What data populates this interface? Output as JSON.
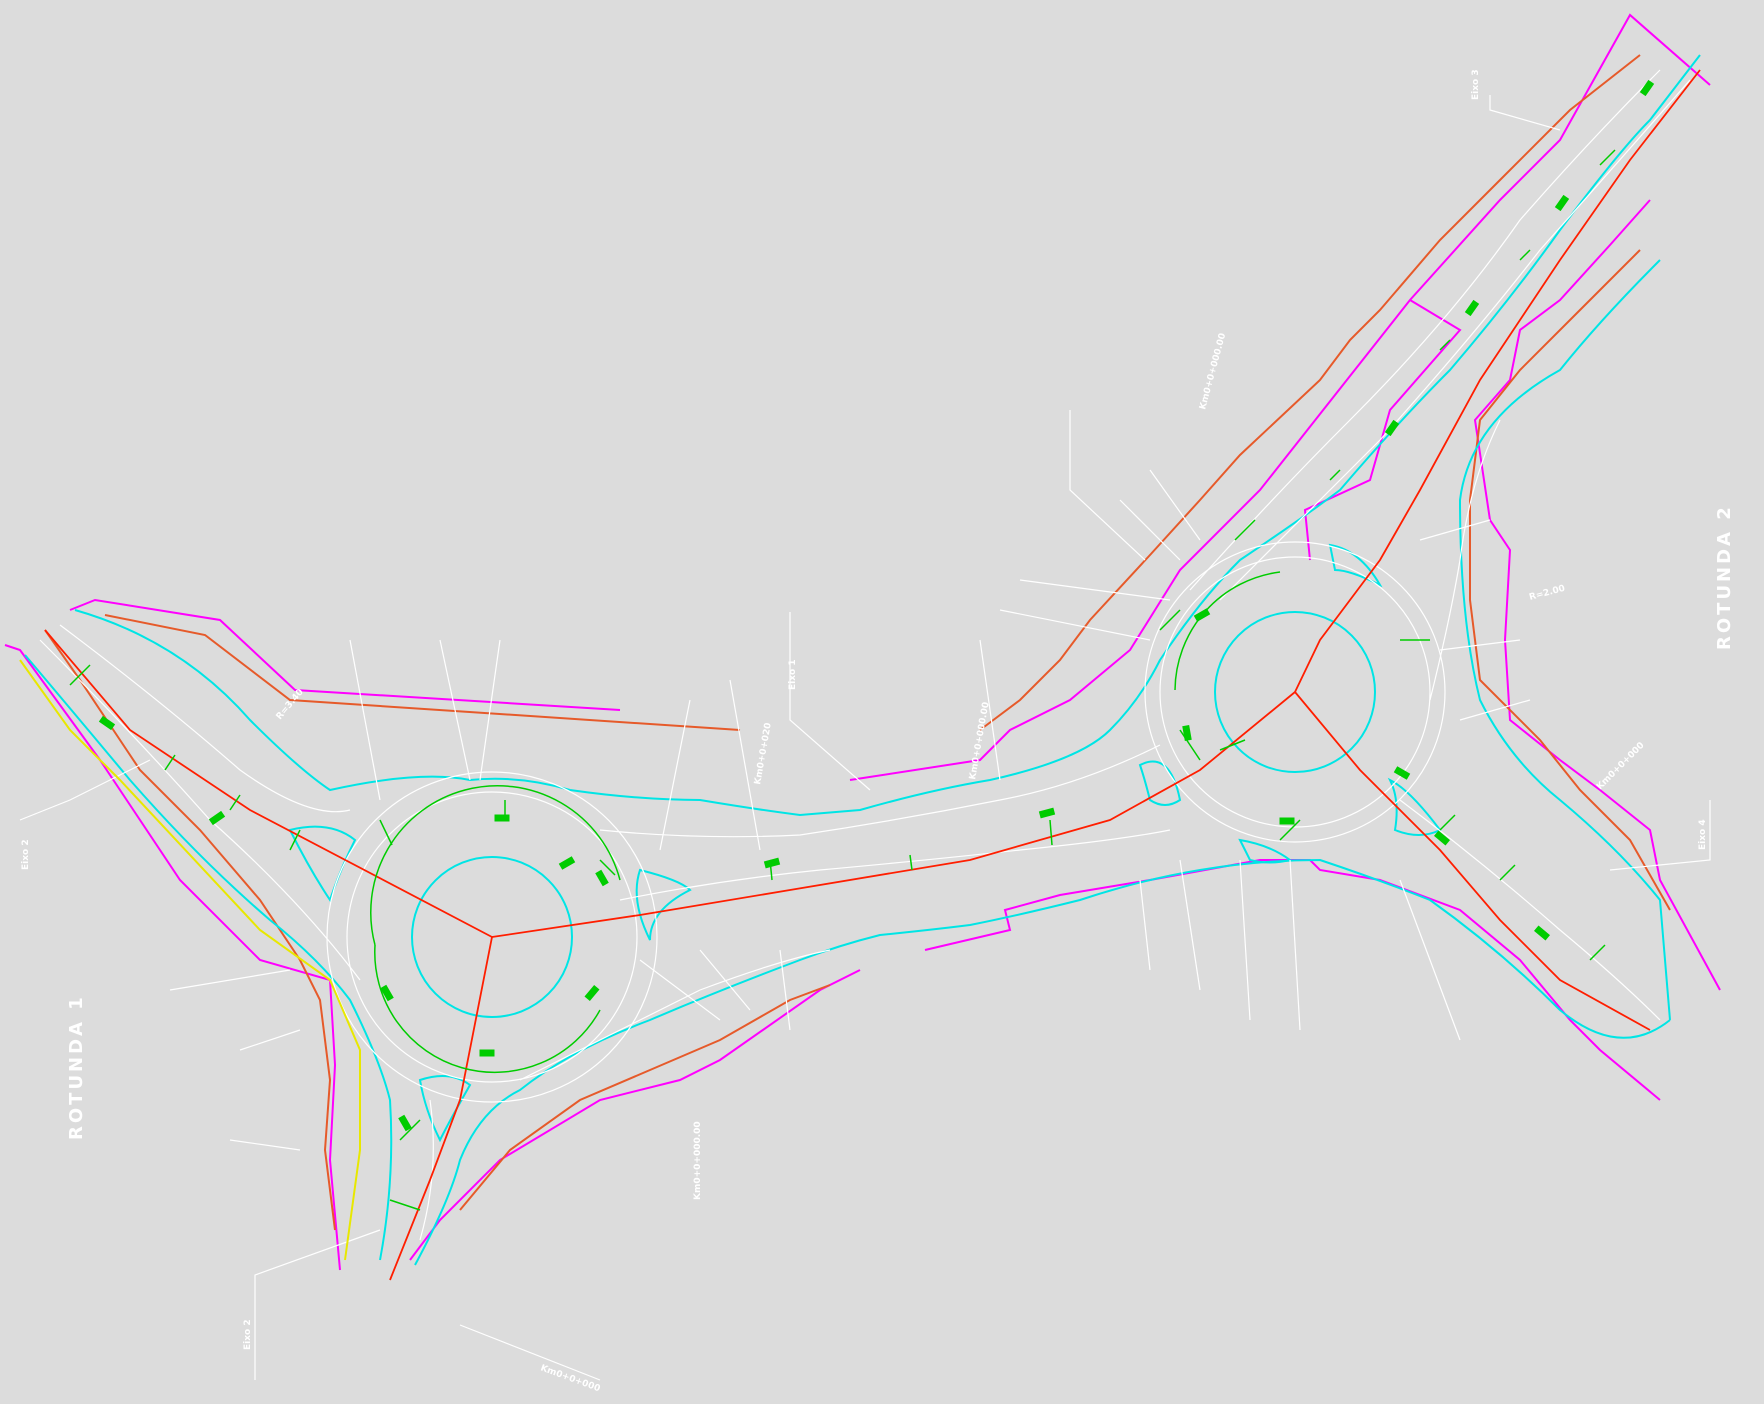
{
  "title_labels": {
    "rotunda_1": "ROTUNDA 1",
    "rotunda_2": "ROTUNDA 2"
  },
  "axis_labels": {
    "eixo_1": "Eixo 1",
    "eixo_2_left": "Eixo 2",
    "eixo_2_bottom": "Eixo 2",
    "eixo_3": "Eixo 3",
    "eixo_4": "Eixo 4"
  },
  "station_labels": {
    "km_bottom": "Km0+0+000",
    "km_r1_south": "Km0+0+000.00",
    "km_r1_north": "Km0+0+020",
    "km_mid": "Km0+0+000.00",
    "km_r2_north": "Km0+0+000.00",
    "km_r2_east": "Km0+0+000",
    "radius_1": "R=3.40",
    "radius_2": "R=2.00"
  },
  "colors": {
    "background": "#dcdcdc",
    "white_lines": "#ffffff",
    "cyan_edge": "#00e5e5",
    "red_axis": "#ff2a00",
    "orange_offset": "#e65a2a",
    "magenta_boundary": "#ff00ff",
    "green_markers": "#00cc00",
    "yellow_edge": "#e8e800"
  }
}
